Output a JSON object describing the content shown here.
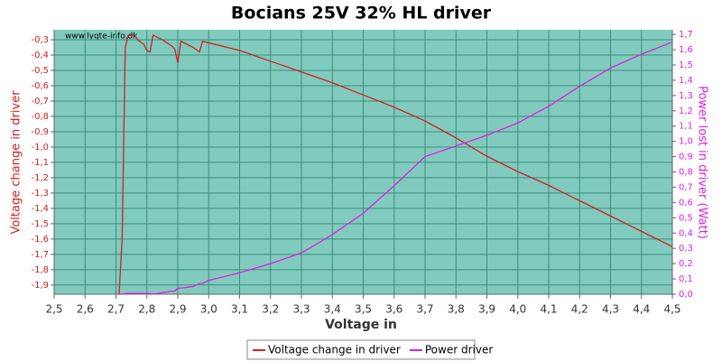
{
  "chart_data": {
    "type": "line",
    "title": "Bocians 25V 32% HL driver",
    "watermark": "www.lygte-info.dk",
    "xlabel": "Voltage in",
    "ylabel": "Voltage change in driver",
    "y2label": "Power lost in driver (Watt)",
    "x": [
      2.71,
      2.72,
      2.73,
      2.74,
      2.76,
      2.77,
      2.79,
      2.8,
      2.81,
      2.82,
      2.85,
      2.88,
      2.89,
      2.9,
      2.91,
      2.95,
      2.97,
      2.98,
      3.0,
      3.1,
      3.2,
      3.3,
      3.4,
      3.5,
      3.6,
      3.7,
      3.8,
      3.9,
      4.0,
      4.1,
      4.2,
      4.3,
      4.4,
      4.5
    ],
    "series": [
      {
        "name": "Voltage change in driver",
        "color": "#d42020",
        "axis": "y",
        "values": [
          -1.96,
          -1.6,
          -0.35,
          -0.27,
          -0.27,
          -0.3,
          -0.33,
          -0.37,
          -0.38,
          -0.27,
          -0.3,
          -0.34,
          -0.36,
          -0.45,
          -0.31,
          -0.35,
          -0.38,
          -0.31,
          -0.32,
          -0.37,
          -0.44,
          -0.51,
          -0.58,
          -0.66,
          -0.74,
          -0.83,
          -0.94,
          -1.06,
          -1.16,
          -1.25,
          -1.35,
          -1.45,
          -1.55,
          -1.65
        ]
      },
      {
        "name": "Power driver",
        "color": "#e020e0",
        "axis": "y2",
        "values": [
          0,
          0,
          0.005,
          0.005,
          0.005,
          0.005,
          0.005,
          0.005,
          0.005,
          0,
          0.01,
          0.02,
          0.02,
          0.04,
          0.04,
          0.05,
          0.07,
          0.07,
          0.09,
          0.14,
          0.2,
          0.27,
          0.39,
          0.53,
          0.71,
          0.9,
          0.97,
          1.04,
          1.12,
          1.23,
          1.36,
          1.48,
          1.57,
          1.65
        ]
      }
    ],
    "xlim": [
      2.5,
      4.5
    ],
    "ylim": [
      -1.96,
      -0.235
    ],
    "y2lim": [
      0,
      1.73
    ],
    "grid": true,
    "xticks": [
      {
        "value": 2.5,
        "label": "2,5"
      },
      {
        "value": 2.6,
        "label": "2,6"
      },
      {
        "value": 2.7,
        "label": "2,7"
      },
      {
        "value": 2.8,
        "label": "2,8"
      },
      {
        "value": 2.9,
        "label": "2,9"
      },
      {
        "value": 3.0,
        "label": "3,0"
      },
      {
        "value": 3.1,
        "label": "3,1"
      },
      {
        "value": 3.2,
        "label": "3,2"
      },
      {
        "value": 3.3,
        "label": "3,3"
      },
      {
        "value": 3.4,
        "label": "3,4"
      },
      {
        "value": 3.5,
        "label": "3,5"
      },
      {
        "value": 3.6,
        "label": "3,6"
      },
      {
        "value": 3.7,
        "label": "3,7"
      },
      {
        "value": 3.8,
        "label": "3,8"
      },
      {
        "value": 3.9,
        "label": "3,9"
      },
      {
        "value": 4.0,
        "label": "4,0"
      },
      {
        "value": 4.1,
        "label": "4,1"
      },
      {
        "value": 4.2,
        "label": "4,2"
      },
      {
        "value": 4.3,
        "label": "4,3"
      },
      {
        "value": 4.4,
        "label": "4,4"
      },
      {
        "value": 4.5,
        "label": "4,5"
      }
    ],
    "yticks": [
      {
        "value": -0.3,
        "label": "-0,3"
      },
      {
        "value": -0.4,
        "label": "-0,4"
      },
      {
        "value": -0.5,
        "label": "-0,5"
      },
      {
        "value": -0.6,
        "label": "-0,6"
      },
      {
        "value": -0.7,
        "label": "-0,7"
      },
      {
        "value": -0.8,
        "label": "-0,8"
      },
      {
        "value": -0.9,
        "label": "-0,9"
      },
      {
        "value": -1.0,
        "label": "-1,0"
      },
      {
        "value": -1.1,
        "label": "-1,1"
      },
      {
        "value": -1.2,
        "label": "-1,2"
      },
      {
        "value": -1.3,
        "label": "-1,3"
      },
      {
        "value": -1.4,
        "label": "-1,4"
      },
      {
        "value": -1.5,
        "label": "-1,5"
      },
      {
        "value": -1.6,
        "label": "-1,6"
      },
      {
        "value": -1.7,
        "label": "-1,7"
      },
      {
        "value": -1.8,
        "label": "-1,8"
      },
      {
        "value": -1.9,
        "label": "-1,9"
      }
    ],
    "y2ticks": [
      {
        "value": 0,
        "label": "0,0"
      },
      {
        "value": 0.1,
        "label": "0,1"
      },
      {
        "value": 0.2,
        "label": "0,2"
      },
      {
        "value": 0.3,
        "label": "0,3"
      },
      {
        "value": 0.4,
        "label": "0,4"
      },
      {
        "value": 0.5,
        "label": "0,5"
      },
      {
        "value": 0.6,
        "label": "0,6"
      },
      {
        "value": 0.7,
        "label": "0,7"
      },
      {
        "value": 0.8,
        "label": "0,8"
      },
      {
        "value": 0.9,
        "label": "0,9"
      },
      {
        "value": 1.0,
        "label": "1,0"
      },
      {
        "value": 1.1,
        "label": "1,1"
      },
      {
        "value": 1.2,
        "label": "1,2"
      },
      {
        "value": 1.3,
        "label": "1,3"
      },
      {
        "value": 1.4,
        "label": "1,4"
      },
      {
        "value": 1.5,
        "label": "1,5"
      },
      {
        "value": 1.6,
        "label": "1,6"
      },
      {
        "value": 1.7,
        "label": "1,7"
      }
    ]
  }
}
